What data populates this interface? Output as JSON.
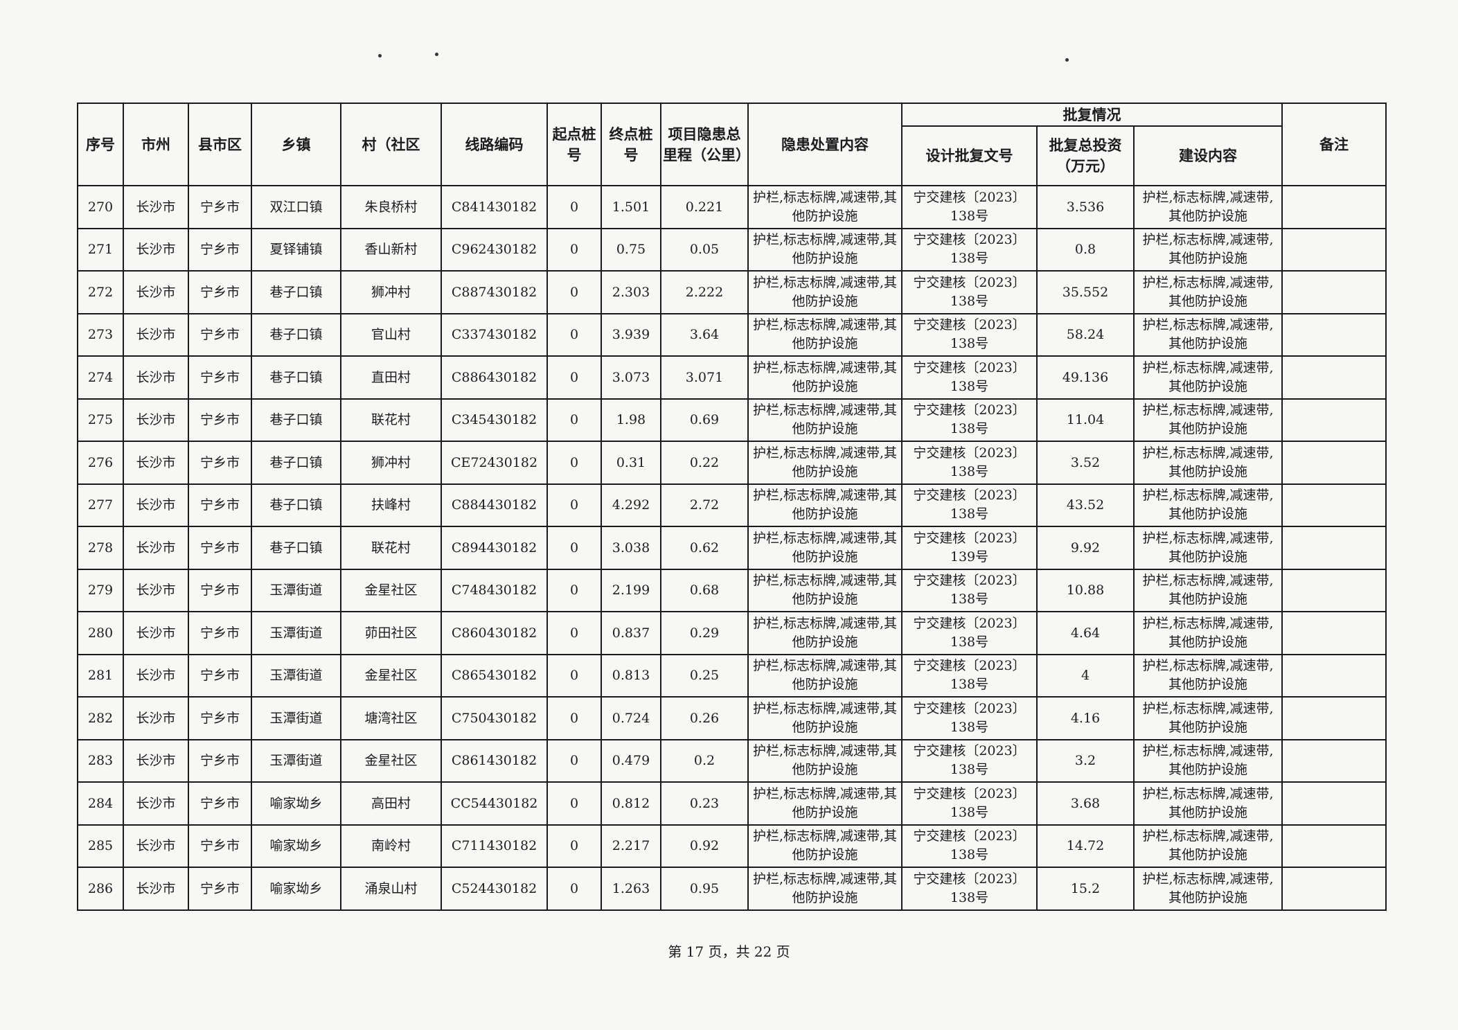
{
  "table": {
    "headers": {
      "seq": "序号",
      "city": "市州",
      "county": "县市区",
      "town": "乡镇",
      "village": "村（社区",
      "route_code": "线路编码",
      "start_stake": "起点桩号",
      "end_stake": "终点桩号",
      "mileage": "项目隐患总里程（公里）",
      "measures": "隐患处置内容",
      "approval_group": "批复情况",
      "approval_doc": "设计批复文号",
      "approval_investment": "批复总投资（万元）",
      "construction": "建设内容",
      "remarks": "备注"
    },
    "rows": [
      {
        "seq": "270",
        "city": "长沙市",
        "county": "宁乡市",
        "town": "双江口镇",
        "village": "朱良桥村",
        "code": "C841430182",
        "start": "0",
        "end": "1.501",
        "mileage": "0.221",
        "measures": "护栏,标志标牌,减速带,其他防护设施",
        "doc": "宁交建核〔2023〕138号",
        "investment": "3.536",
        "construction": "护栏,标志标牌,减速带,其他防护设施",
        "remarks": ""
      },
      {
        "seq": "271",
        "city": "长沙市",
        "county": "宁乡市",
        "town": "夏铎铺镇",
        "village": "香山新村",
        "code": "C962430182",
        "start": "0",
        "end": "0.75",
        "mileage": "0.05",
        "measures": "护栏,标志标牌,减速带,其他防护设施",
        "doc": "宁交建核〔2023〕138号",
        "investment": "0.8",
        "construction": "护栏,标志标牌,减速带,其他防护设施",
        "remarks": ""
      },
      {
        "seq": "272",
        "city": "长沙市",
        "county": "宁乡市",
        "town": "巷子口镇",
        "village": "狮冲村",
        "code": "C887430182",
        "start": "0",
        "end": "2.303",
        "mileage": "2.222",
        "measures": "护栏,标志标牌,减速带,其他防护设施",
        "doc": "宁交建核〔2023〕138号",
        "investment": "35.552",
        "construction": "护栏,标志标牌,减速带,其他防护设施",
        "remarks": ""
      },
      {
        "seq": "273",
        "city": "长沙市",
        "county": "宁乡市",
        "town": "巷子口镇",
        "village": "官山村",
        "code": "C337430182",
        "start": "0",
        "end": "3.939",
        "mileage": "3.64",
        "measures": "护栏,标志标牌,减速带,其他防护设施",
        "doc": "宁交建核〔2023〕138号",
        "investment": "58.24",
        "construction": "护栏,标志标牌,减速带,其他防护设施",
        "remarks": ""
      },
      {
        "seq": "274",
        "city": "长沙市",
        "county": "宁乡市",
        "town": "巷子口镇",
        "village": "直田村",
        "code": "C886430182",
        "start": "0",
        "end": "3.073",
        "mileage": "3.071",
        "measures": "护栏,标志标牌,减速带,其他防护设施",
        "doc": "宁交建核〔2023〕138号",
        "investment": "49.136",
        "construction": "护栏,标志标牌,减速带,其他防护设施",
        "remarks": ""
      },
      {
        "seq": "275",
        "city": "长沙市",
        "county": "宁乡市",
        "town": "巷子口镇",
        "village": "联花村",
        "code": "C345430182",
        "start": "0",
        "end": "1.98",
        "mileage": "0.69",
        "measures": "护栏,标志标牌,减速带,其他防护设施",
        "doc": "宁交建核〔2023〕138号",
        "investment": "11.04",
        "construction": "护栏,标志标牌,减速带,其他防护设施",
        "remarks": ""
      },
      {
        "seq": "276",
        "city": "长沙市",
        "county": "宁乡市",
        "town": "巷子口镇",
        "village": "狮冲村",
        "code": "CE72430182",
        "start": "0",
        "end": "0.31",
        "mileage": "0.22",
        "measures": "护栏,标志标牌,减速带,其他防护设施",
        "doc": "宁交建核〔2023〕138号",
        "investment": "3.52",
        "construction": "护栏,标志标牌,减速带,其他防护设施",
        "remarks": ""
      },
      {
        "seq": "277",
        "city": "长沙市",
        "county": "宁乡市",
        "town": "巷子口镇",
        "village": "扶峰村",
        "code": "C884430182",
        "start": "0",
        "end": "4.292",
        "mileage": "2.72",
        "measures": "护栏,标志标牌,减速带,其他防护设施",
        "doc": "宁交建核〔2023〕138号",
        "investment": "43.52",
        "construction": "护栏,标志标牌,减速带,其他防护设施",
        "remarks": ""
      },
      {
        "seq": "278",
        "city": "长沙市",
        "county": "宁乡市",
        "town": "巷子口镇",
        "village": "联花村",
        "code": "C894430182",
        "start": "0",
        "end": "3.038",
        "mileage": "0.62",
        "measures": "护栏,标志标牌,减速带,其他防护设施",
        "doc": "宁交建核〔2023〕139号",
        "investment": "9.92",
        "construction": "护栏,标志标牌,减速带,其他防护设施",
        "remarks": ""
      },
      {
        "seq": "279",
        "city": "长沙市",
        "county": "宁乡市",
        "town": "玉潭街道",
        "village": "金星社区",
        "code": "C748430182",
        "start": "0",
        "end": "2.199",
        "mileage": "0.68",
        "measures": "护栏,标志标牌,减速带,其他防护设施",
        "doc": "宁交建核〔2023〕138号",
        "investment": "10.88",
        "construction": "护栏,标志标牌,减速带,其他防护设施",
        "remarks": ""
      },
      {
        "seq": "280",
        "city": "长沙市",
        "county": "宁乡市",
        "town": "玉潭街道",
        "village": "茆田社区",
        "code": "C860430182",
        "start": "0",
        "end": "0.837",
        "mileage": "0.29",
        "measures": "护栏,标志标牌,减速带,其他防护设施",
        "doc": "宁交建核〔2023〕138号",
        "investment": "4.64",
        "construction": "护栏,标志标牌,减速带,其他防护设施",
        "remarks": ""
      },
      {
        "seq": "281",
        "city": "长沙市",
        "county": "宁乡市",
        "town": "玉潭街道",
        "village": "金星社区",
        "code": "C865430182",
        "start": "0",
        "end": "0.813",
        "mileage": "0.25",
        "measures": "护栏,标志标牌,减速带,其他防护设施",
        "doc": "宁交建核〔2023〕138号",
        "investment": "4",
        "construction": "护栏,标志标牌,减速带,其他防护设施",
        "remarks": ""
      },
      {
        "seq": "282",
        "city": "长沙市",
        "county": "宁乡市",
        "town": "玉潭街道",
        "village": "塘湾社区",
        "code": "C750430182",
        "start": "0",
        "end": "0.724",
        "mileage": "0.26",
        "measures": "护栏,标志标牌,减速带,其他防护设施",
        "doc": "宁交建核〔2023〕138号",
        "investment": "4.16",
        "construction": "护栏,标志标牌,减速带,其他防护设施",
        "remarks": ""
      },
      {
        "seq": "283",
        "city": "长沙市",
        "county": "宁乡市",
        "town": "玉潭街道",
        "village": "金星社区",
        "code": "C861430182",
        "start": "0",
        "end": "0.479",
        "mileage": "0.2",
        "measures": "护栏,标志标牌,减速带,其他防护设施",
        "doc": "宁交建核〔2023〕138号",
        "investment": "3.2",
        "construction": "护栏,标志标牌,减速带,其他防护设施",
        "remarks": ""
      },
      {
        "seq": "284",
        "city": "长沙市",
        "county": "宁乡市",
        "town": "喻家坳乡",
        "village": "高田村",
        "code": "CC54430182",
        "start": "0",
        "end": "0.812",
        "mileage": "0.23",
        "measures": "护栏,标志标牌,减速带,其他防护设施",
        "doc": "宁交建核〔2023〕138号",
        "investment": "3.68",
        "construction": "护栏,标志标牌,减速带,其他防护设施",
        "remarks": ""
      },
      {
        "seq": "285",
        "city": "长沙市",
        "county": "宁乡市",
        "town": "喻家坳乡",
        "village": "南岭村",
        "code": "C711430182",
        "start": "0",
        "end": "2.217",
        "mileage": "0.92",
        "measures": "护栏,标志标牌,减速带,其他防护设施",
        "doc": "宁交建核〔2023〕138号",
        "investment": "14.72",
        "construction": "护栏,标志标牌,减速带,其他防护设施",
        "remarks": ""
      },
      {
        "seq": "286",
        "city": "长沙市",
        "county": "宁乡市",
        "town": "喻家坳乡",
        "village": "涌泉山村",
        "code": "C524430182",
        "start": "0",
        "end": "1.263",
        "mileage": "0.95",
        "measures": "护栏,标志标牌,减速带,其他防护设施",
        "doc": "宁交建核〔2023〕138号",
        "investment": "15.2",
        "construction": "护栏,标志标牌,减速带,其他防护设施",
        "remarks": ""
      }
    ]
  },
  "footer": {
    "page_indicator": "第 17 页，共 22 页"
  }
}
